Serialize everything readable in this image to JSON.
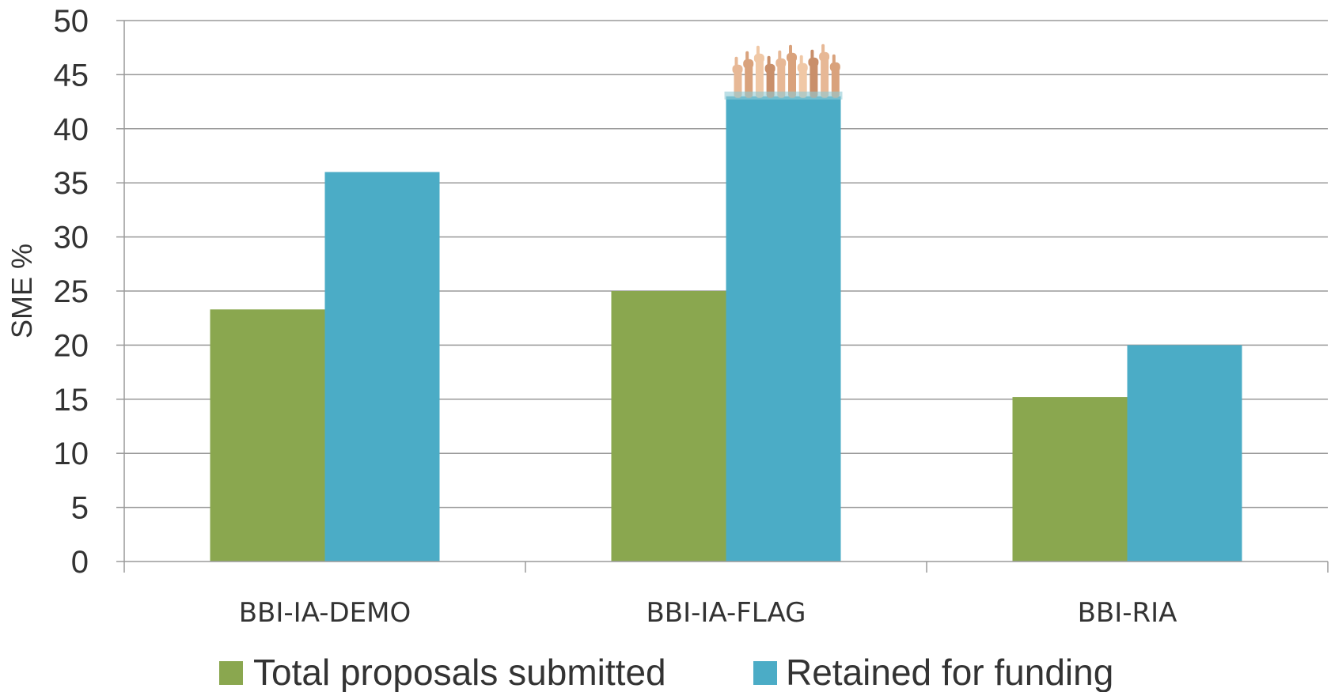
{
  "chart_data": {
    "type": "bar",
    "title": "",
    "xlabel": "",
    "ylabel": "SME %",
    "ylim": [
      0,
      50
    ],
    "yticks": [
      0,
      5,
      10,
      15,
      20,
      25,
      30,
      35,
      40,
      45,
      50
    ],
    "grid": true,
    "legend_position": "bottom",
    "categories": [
      "BBI-IA-DEMO",
      "BBI-IA-FLAG",
      "BBI-RIA"
    ],
    "series": [
      {
        "name": "Total proposals submitted",
        "values": [
          23.3,
          25.0,
          15.2
        ],
        "color": "#8aa74f"
      },
      {
        "name": "Retained for funding",
        "values": [
          36.0,
          43.0,
          20.0
        ],
        "color": "#4bacc6"
      }
    ],
    "annotations": [
      {
        "type": "image",
        "description": "thumbs-up-hands",
        "category": "BBI-IA-FLAG",
        "series": "Retained for funding"
      }
    ]
  }
}
